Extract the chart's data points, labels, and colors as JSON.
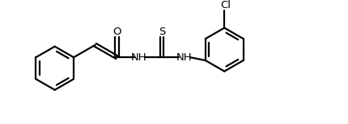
{
  "bg_color": "#ffffff",
  "line_color": "#000000",
  "line_width": 1.6,
  "font_size": 9.5,
  "O_label": "O",
  "S_label": "S",
  "NH1_label": "NH",
  "NH2_label": "NH",
  "Cl_label": "Cl"
}
